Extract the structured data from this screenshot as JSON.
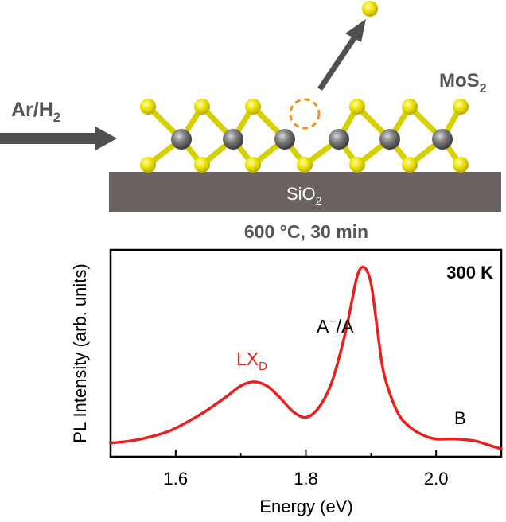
{
  "schematic": {
    "gas_label": "Ar/H",
    "gas_sub": "2",
    "material_label": "MoS",
    "material_sub": "2",
    "substrate_label": "SiO",
    "substrate_sub": "2",
    "condition": "600 °C, 30 min",
    "colors": {
      "sulfur": "#e8e000",
      "molybdenum": "#707070",
      "substrate": "#6b6262",
      "arrow": "#505050",
      "vacancy": "#f0961e"
    }
  },
  "chart_data": {
    "type": "line",
    "title": "",
    "xlabel": "Energy (eV)",
    "ylabel": "PL Intensity (arb. units)",
    "xlim": [
      1.5,
      2.1
    ],
    "ylim": [
      0,
      1.05
    ],
    "xticks": [
      1.6,
      1.8,
      2.0
    ],
    "xtick_labels": [
      "1.6",
      "1.8",
      "2.0"
    ],
    "grid": false,
    "line_color": "#e8201e",
    "series": [
      {
        "x": [
          1.5,
          1.53,
          1.56,
          1.59,
          1.62,
          1.65,
          1.68,
          1.7,
          1.72,
          1.74,
          1.76,
          1.78,
          1.8,
          1.82,
          1.84,
          1.86,
          1.87,
          1.88,
          1.89,
          1.9,
          1.91,
          1.92,
          1.94,
          1.96,
          1.98,
          2.0,
          2.03,
          2.06,
          2.08,
          2.1
        ],
        "y": [
          0.07,
          0.08,
          0.1,
          0.13,
          0.18,
          0.24,
          0.31,
          0.36,
          0.38,
          0.36,
          0.3,
          0.23,
          0.2,
          0.25,
          0.38,
          0.62,
          0.78,
          0.93,
          0.96,
          0.88,
          0.64,
          0.42,
          0.23,
          0.15,
          0.11,
          0.09,
          0.09,
          0.08,
          0.06,
          0.04
        ]
      }
    ],
    "annotations": [
      {
        "text": "300 K"
      },
      {
        "text": "A",
        "sup": "−",
        "suffix": "/A"
      },
      {
        "text": "LX",
        "sub": "D"
      },
      {
        "text": "B"
      }
    ]
  }
}
